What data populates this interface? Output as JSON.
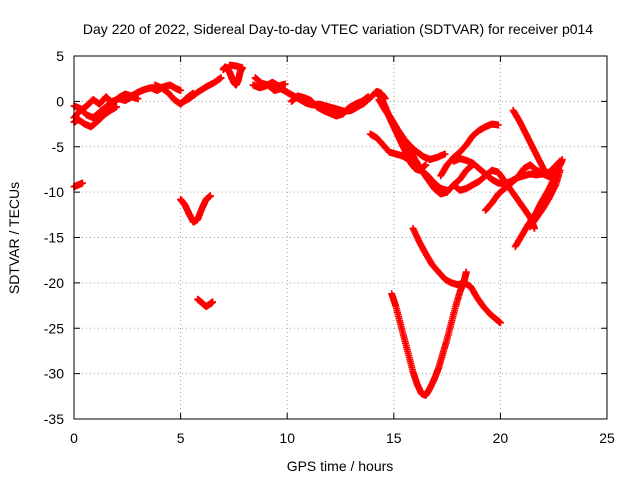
{
  "chart_data": {
    "type": "scatter",
    "title": "Day 220 of 2022, Sidereal Day-to-day VTEC variation (SDTVAR) for receiver p014",
    "xlabel": "GPS time / hours",
    "ylabel": "SDTVAR / TECUs",
    "xlim": [
      0,
      25
    ],
    "ylim": [
      -35,
      5
    ],
    "xticks": [
      0,
      5,
      10,
      15,
      20,
      25
    ],
    "yticks": [
      5,
      0,
      -5,
      -10,
      -15,
      -20,
      -25,
      -30,
      -35
    ],
    "grid": true,
    "marker": "+",
    "color": "#ff0000",
    "tracks": [
      {
        "points": [
          [
            0.0,
            -1.8
          ],
          [
            0.3,
            -1.0
          ],
          [
            0.6,
            -0.5
          ],
          [
            0.9,
            0.2
          ],
          [
            1.2,
            -0.3
          ],
          [
            1.5,
            0.5
          ],
          [
            1.8,
            -0.2
          ],
          [
            2.1,
            0.4
          ],
          [
            2.4,
            0.8
          ],
          [
            2.7,
            0.6
          ],
          [
            3.0,
            1.0
          ],
          [
            3.3,
            1.3
          ],
          [
            3.6,
            1.5
          ],
          [
            3.9,
            1.2
          ],
          [
            4.2,
            1.6
          ],
          [
            4.5,
            1.8
          ],
          [
            4.8,
            1.4
          ],
          [
            5.0,
            1.2
          ]
        ]
      },
      {
        "points": [
          [
            0.0,
            -0.5
          ],
          [
            0.3,
            -0.8
          ],
          [
            0.6,
            -1.5
          ],
          [
            0.9,
            -1.8
          ],
          [
            1.2,
            -1.2
          ],
          [
            1.5,
            -0.6
          ],
          [
            1.8,
            0.0
          ],
          [
            2.1,
            0.3
          ],
          [
            2.4,
            0.1
          ],
          [
            2.7,
            0.5
          ],
          [
            3.0,
            0.3
          ]
        ]
      },
      {
        "points": [
          [
            0.0,
            -2.3
          ],
          [
            0.2,
            -2.0
          ],
          [
            0.5,
            -2.5
          ],
          [
            0.8,
            -2.8
          ],
          [
            1.1,
            -2.2
          ],
          [
            1.4,
            -1.5
          ],
          [
            1.7,
            -1.0
          ],
          [
            2.0,
            -0.6
          ]
        ]
      },
      {
        "points": [
          [
            3.8,
            1.8
          ],
          [
            4.1,
            1.5
          ],
          [
            4.4,
            1.0
          ],
          [
            4.7,
            0.2
          ],
          [
            5.0,
            -0.3
          ],
          [
            5.3,
            0.4
          ],
          [
            5.6,
            0.9
          ]
        ]
      },
      {
        "points": [
          [
            5.0,
            -0.2
          ],
          [
            5.4,
            0.3
          ],
          [
            5.8,
            1.0
          ],
          [
            6.2,
            1.6
          ],
          [
            6.6,
            2.1
          ],
          [
            6.9,
            2.6
          ]
        ]
      },
      {
        "points": [
          [
            7.0,
            3.5
          ],
          [
            7.1,
            3.8
          ],
          [
            7.2,
            3.6
          ],
          [
            7.3,
            3.2
          ],
          [
            7.4,
            2.6
          ],
          [
            7.5,
            2.1
          ],
          [
            7.6,
            1.8
          ],
          [
            7.7,
            2.3
          ],
          [
            7.8,
            3.3
          ],
          [
            7.9,
            3.7
          ],
          [
            7.6,
            3.9
          ],
          [
            7.3,
            4.0
          ]
        ]
      },
      {
        "points": [
          [
            8.5,
            2.6
          ],
          [
            8.8,
            2.0
          ],
          [
            9.1,
            1.8
          ],
          [
            9.4,
            1.2
          ],
          [
            9.7,
            1.4
          ],
          [
            10.0,
            1.0
          ],
          [
            10.3,
            0.6
          ],
          [
            10.6,
            0.2
          ],
          [
            10.9,
            -0.2
          ],
          [
            11.2,
            -0.4
          ],
          [
            11.5,
            -0.3
          ],
          [
            11.8,
            -0.5
          ],
          [
            12.1,
            -0.7
          ],
          [
            12.4,
            -0.9
          ],
          [
            12.7,
            -1.1
          ],
          [
            13.0,
            -1.0
          ],
          [
            13.3,
            -0.6
          ],
          [
            13.6,
            -0.2
          ],
          [
            13.9,
            0.4
          ],
          [
            14.2,
            1.1
          ],
          [
            14.4,
            0.9
          ],
          [
            14.6,
            0.3
          ]
        ]
      },
      {
        "points": [
          [
            8.4,
            1.8
          ],
          [
            8.7,
            1.5
          ],
          [
            9.0,
            1.7
          ],
          [
            9.3,
            2.1
          ],
          [
            9.6,
            1.7
          ],
          [
            9.9,
            1.9
          ]
        ]
      },
      {
        "points": [
          [
            10.2,
            0.0
          ],
          [
            10.5,
            0.6
          ],
          [
            10.8,
            0.4
          ],
          [
            11.1,
            0.1
          ],
          [
            11.4,
            -0.6
          ],
          [
            11.7,
            -1.0
          ],
          [
            12.0,
            -1.3
          ],
          [
            12.3,
            -1.6
          ],
          [
            12.6,
            -1.4
          ],
          [
            12.9,
            -0.7
          ],
          [
            13.2,
            -0.3
          ],
          [
            13.5,
            0.0
          ],
          [
            13.8,
            0.5
          ]
        ]
      },
      {
        "points": [
          [
            14.2,
            1.0
          ],
          [
            14.4,
            0.4
          ],
          [
            14.6,
            -0.6
          ],
          [
            14.8,
            -1.8
          ],
          [
            15.0,
            -2.8
          ],
          [
            15.2,
            -3.8
          ],
          [
            15.4,
            -4.8
          ],
          [
            15.6,
            -5.8
          ],
          [
            15.8,
            -6.8
          ],
          [
            16.0,
            -7.4
          ],
          [
            16.2,
            -7.6
          ],
          [
            16.5,
            -7.0
          ]
        ]
      },
      {
        "points": [
          [
            14.3,
            0.2
          ],
          [
            14.6,
            -1.0
          ],
          [
            14.9,
            -2.0
          ],
          [
            15.2,
            -3.2
          ],
          [
            15.5,
            -4.2
          ],
          [
            15.8,
            -5.0
          ],
          [
            16.1,
            -5.6
          ],
          [
            16.4,
            -6.1
          ],
          [
            16.7,
            -6.4
          ],
          [
            17.0,
            -6.2
          ],
          [
            17.4,
            -5.8
          ]
        ]
      },
      {
        "points": [
          [
            14.5,
            -0.4
          ],
          [
            14.8,
            -1.6
          ],
          [
            15.1,
            -2.8
          ],
          [
            15.4,
            -4.0
          ],
          [
            15.7,
            -5.2
          ],
          [
            16.0,
            -6.4
          ],
          [
            16.3,
            -7.6
          ],
          [
            16.6,
            -8.6
          ],
          [
            16.9,
            -9.6
          ],
          [
            17.2,
            -10.2
          ],
          [
            17.5,
            -10.0
          ],
          [
            17.8,
            -9.2
          ],
          [
            18.1,
            -8.6
          ],
          [
            18.4,
            -7.6
          ],
          [
            18.7,
            -7.0
          ]
        ]
      },
      {
        "points": [
          [
            13.9,
            -3.6
          ],
          [
            14.2,
            -4.0
          ],
          [
            14.5,
            -4.8
          ],
          [
            14.8,
            -5.6
          ],
          [
            15.1,
            -5.8
          ],
          [
            15.4,
            -6.0
          ],
          [
            15.7,
            -6.4
          ],
          [
            16.0,
            -6.8
          ],
          [
            16.3,
            -7.6
          ],
          [
            16.6,
            -8.2
          ],
          [
            16.9,
            -9.0
          ],
          [
            17.2,
            -9.6
          ],
          [
            17.5,
            -9.8
          ]
        ]
      },
      {
        "points": [
          [
            17.2,
            -8.2
          ],
          [
            17.5,
            -7.0
          ],
          [
            17.8,
            -6.2
          ],
          [
            18.1,
            -5.6
          ],
          [
            18.4,
            -4.8
          ],
          [
            18.7,
            -3.8
          ],
          [
            19.0,
            -3.2
          ],
          [
            19.3,
            -2.8
          ],
          [
            19.6,
            -2.5
          ],
          [
            19.9,
            -2.6
          ]
        ]
      },
      {
        "points": [
          [
            17.8,
            -6.6
          ],
          [
            18.1,
            -6.3
          ],
          [
            18.4,
            -6.5
          ],
          [
            18.7,
            -6.8
          ],
          [
            19.0,
            -7.4
          ],
          [
            19.3,
            -8.0
          ],
          [
            19.6,
            -8.6
          ],
          [
            19.9,
            -9.0
          ],
          [
            20.2,
            -9.1
          ],
          [
            20.5,
            -8.8
          ],
          [
            20.8,
            -8.4
          ],
          [
            21.1,
            -8.2
          ],
          [
            21.4,
            -8.0
          ],
          [
            21.7,
            -8.1
          ],
          [
            22.0,
            -8.0
          ],
          [
            22.3,
            -7.8
          ],
          [
            22.6,
            -7.1
          ],
          [
            22.8,
            -6.6
          ]
        ]
      },
      {
        "points": [
          [
            17.8,
            -9.2
          ],
          [
            18.1,
            -9.8
          ],
          [
            18.4,
            -9.6
          ],
          [
            18.7,
            -9.2
          ],
          [
            19.0,
            -8.8
          ],
          [
            19.3,
            -8.2
          ],
          [
            19.6,
            -7.6
          ],
          [
            19.9,
            -7.8
          ],
          [
            20.2,
            -8.8
          ],
          [
            20.5,
            -9.8
          ],
          [
            20.8,
            -10.8
          ],
          [
            21.1,
            -11.8
          ],
          [
            21.4,
            -12.8
          ],
          [
            21.6,
            -14.0
          ]
        ]
      },
      {
        "points": [
          [
            19.3,
            -12.0
          ],
          [
            19.6,
            -11.2
          ],
          [
            19.9,
            -10.2
          ],
          [
            20.2,
            -9.6
          ],
          [
            20.5,
            -9.0
          ],
          [
            20.8,
            -8.4
          ],
          [
            21.1,
            -7.4
          ],
          [
            21.4,
            -7.0
          ],
          [
            21.7,
            -7.6
          ],
          [
            22.0,
            -8.0
          ],
          [
            22.3,
            -8.3
          ],
          [
            22.6,
            -8.1
          ]
        ]
      },
      {
        "points": [
          [
            20.6,
            -1.0
          ],
          [
            20.9,
            -2.2
          ],
          [
            21.2,
            -3.6
          ],
          [
            21.5,
            -5.0
          ],
          [
            21.8,
            -6.4
          ],
          [
            22.1,
            -7.8
          ],
          [
            22.4,
            -8.0
          ],
          [
            22.6,
            -7.4
          ],
          [
            22.8,
            -6.6
          ]
        ]
      },
      {
        "points": [
          [
            20.7,
            -16.0
          ],
          [
            21.0,
            -14.8
          ],
          [
            21.3,
            -13.6
          ],
          [
            21.6,
            -12.6
          ],
          [
            21.9,
            -11.2
          ],
          [
            22.2,
            -10.0
          ],
          [
            22.5,
            -8.6
          ],
          [
            22.8,
            -7.0
          ],
          [
            22.9,
            -6.4
          ]
        ]
      },
      {
        "points": [
          [
            21.4,
            -13.8
          ],
          [
            21.7,
            -12.8
          ],
          [
            22.0,
            -11.8
          ],
          [
            22.3,
            -10.6
          ],
          [
            22.6,
            -9.2
          ],
          [
            22.8,
            -7.6
          ]
        ]
      },
      {
        "points": [
          [
            15.9,
            -14.0
          ],
          [
            16.2,
            -15.5
          ],
          [
            16.5,
            -16.8
          ],
          [
            16.8,
            -18.0
          ],
          [
            17.1,
            -18.8
          ],
          [
            17.4,
            -19.6
          ],
          [
            17.7,
            -20.0
          ],
          [
            18.0,
            -20.2
          ],
          [
            18.3,
            -20.0
          ],
          [
            18.6,
            -20.4
          ],
          [
            18.9,
            -21.6
          ],
          [
            19.2,
            -22.6
          ],
          [
            19.5,
            -23.4
          ],
          [
            19.8,
            -24.0
          ],
          [
            20.0,
            -24.4
          ]
        ]
      },
      {
        "points": [
          [
            14.9,
            -21.2
          ],
          [
            15.1,
            -22.6
          ],
          [
            15.3,
            -24.4
          ],
          [
            15.5,
            -26.2
          ],
          [
            15.7,
            -28.0
          ],
          [
            15.9,
            -29.8
          ],
          [
            16.1,
            -31.2
          ],
          [
            16.3,
            -32.2
          ],
          [
            16.5,
            -32.4
          ],
          [
            16.7,
            -31.6
          ],
          [
            16.9,
            -30.6
          ],
          [
            17.1,
            -29.4
          ],
          [
            17.3,
            -27.8
          ],
          [
            17.5,
            -26.2
          ],
          [
            17.7,
            -24.4
          ],
          [
            17.9,
            -22.6
          ],
          [
            18.1,
            -21.0
          ],
          [
            18.3,
            -19.8
          ],
          [
            18.4,
            -18.8
          ]
        ]
      },
      {
        "points": [
          [
            0.0,
            -9.4
          ],
          [
            0.2,
            -9.2
          ],
          [
            0.4,
            -9.0
          ]
        ]
      },
      {
        "points": [
          [
            5.0,
            -10.8
          ],
          [
            5.2,
            -11.4
          ],
          [
            5.4,
            -12.4
          ],
          [
            5.6,
            -13.3
          ],
          [
            5.8,
            -13.0
          ],
          [
            6.0,
            -11.8
          ],
          [
            6.2,
            -10.8
          ],
          [
            6.4,
            -10.4
          ]
        ]
      },
      {
        "points": [
          [
            5.8,
            -21.8
          ],
          [
            6.0,
            -22.2
          ],
          [
            6.2,
            -22.6
          ],
          [
            6.4,
            -22.3
          ],
          [
            6.5,
            -22.1
          ]
        ]
      }
    ]
  }
}
